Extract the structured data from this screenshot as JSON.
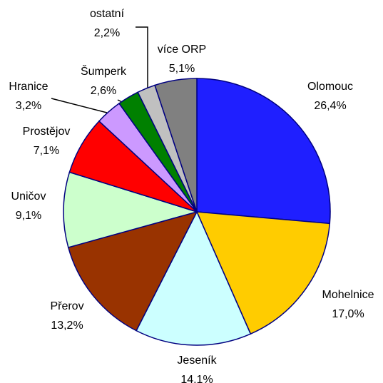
{
  "chart_data": {
    "type": "pie",
    "categories": [
      "Olomouc",
      "Mohelnice",
      "Jeseník",
      "Přerov",
      "Uničov",
      "Prostějov",
      "Hranice",
      "Šumperk",
      "ostatní",
      "více ORP"
    ],
    "values": [
      26.4,
      17.0,
      14.1,
      13.2,
      9.1,
      7.1,
      3.2,
      2.6,
      2.2,
      5.1
    ],
    "value_labels": [
      "26,4%",
      "17,0%",
      "14,1%",
      "13,2%",
      "9,1%",
      "7,1%",
      "3,2%",
      "2,6%",
      "2,2%",
      "5,1%"
    ],
    "colors": [
      "#1f1fff",
      "#ffcc00",
      "#ccffff",
      "#993300",
      "#ccffcc",
      "#ff0000",
      "#cc99ff",
      "#008000",
      "#c0c0c0",
      "#808080"
    ]
  }
}
